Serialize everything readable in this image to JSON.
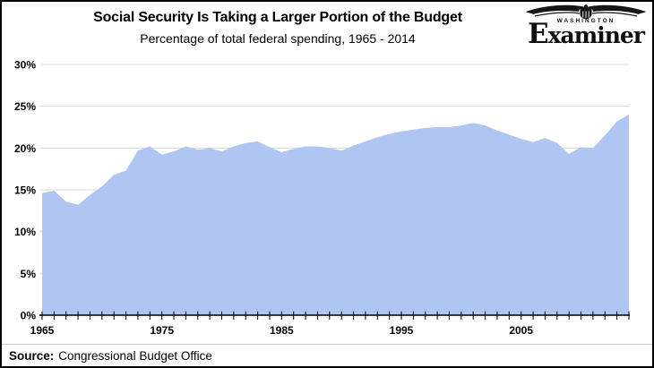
{
  "header": {
    "title": "Social Security Is Taking a Larger Portion of the Budget",
    "subtitle": "Percentage of total federal spending, 1965 - 2014"
  },
  "logo": {
    "top_text": "WASHINGTON",
    "name_text": "Examiner"
  },
  "source": {
    "label": "Source:",
    "text": "Congressional Budget Office"
  },
  "chart_data": {
    "type": "area",
    "title": "Social Security Is Taking a Larger Portion of the Budget",
    "subtitle": "Percentage of total federal spending, 1965 - 2014",
    "xlabel": "",
    "ylabel": "",
    "x": [
      1965,
      1966,
      1967,
      1968,
      1969,
      1970,
      1971,
      1972,
      1973,
      1974,
      1975,
      1976,
      1977,
      1978,
      1979,
      1980,
      1981,
      1982,
      1983,
      1984,
      1985,
      1986,
      1987,
      1988,
      1989,
      1990,
      1991,
      1992,
      1993,
      1994,
      1995,
      1996,
      1997,
      1998,
      1999,
      2000,
      2001,
      2002,
      2003,
      2004,
      2005,
      2006,
      2007,
      2008,
      2009,
      2010,
      2011,
      2012,
      2013,
      2014
    ],
    "values": [
      14.6,
      14.9,
      13.6,
      13.2,
      14.4,
      15.4,
      16.8,
      17.3,
      19.7,
      20.2,
      19.2,
      19.6,
      20.2,
      19.8,
      20.0,
      19.6,
      20.2,
      20.6,
      20.8,
      20.1,
      19.5,
      19.9,
      20.2,
      20.2,
      20.0,
      19.7,
      20.3,
      20.8,
      21.3,
      21.7,
      22.0,
      22.2,
      22.4,
      22.5,
      22.5,
      22.7,
      23.0,
      22.7,
      22.1,
      21.6,
      21.1,
      20.7,
      21.2,
      20.6,
      19.3,
      20.1,
      20.0,
      21.5,
      23.2,
      24.0
    ],
    "ylim": [
      0,
      30
    ],
    "ytick_step": 5,
    "ytick_labels": [
      "0%",
      "5%",
      "10%",
      "15%",
      "20%",
      "25%",
      "30%"
    ],
    "xtick_labels": [
      "1965",
      "1975",
      "1985",
      "1995",
      "2005"
    ],
    "grid": true,
    "legend": "none",
    "fill_color": "#aec6f1",
    "gridline_color": "#d9d9d9",
    "axis_color": "#000000"
  }
}
